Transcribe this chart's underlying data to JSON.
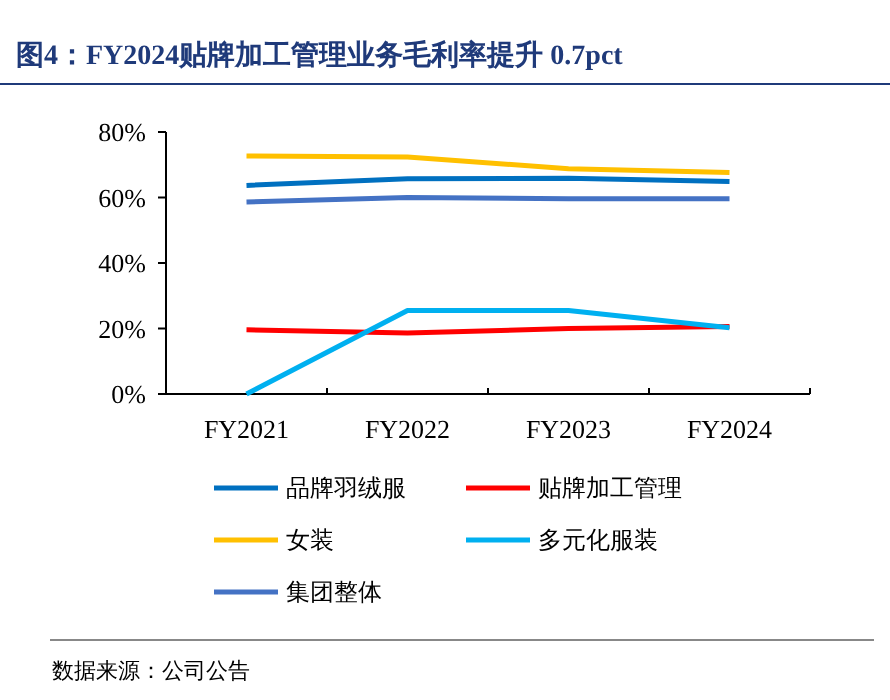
{
  "chart_data": {
    "type": "line",
    "title": "图4：FY2024贴牌加工管理业务毛利率提升 0.7pct",
    "categories": [
      "FY2021",
      "FY2022",
      "FY2023",
      "FY2024"
    ],
    "series": [
      {
        "name": "品牌羽绒服",
        "color": "#0070c0",
        "values": [
          63.7,
          65.7,
          65.9,
          64.9
        ]
      },
      {
        "name": "贴牌加工管理",
        "color": "#ff0000",
        "values": [
          19.6,
          18.6,
          20,
          20.6
        ]
      },
      {
        "name": "女装",
        "color": "#ffc000",
        "values": [
          72.7,
          72.4,
          68.8,
          67.6
        ]
      },
      {
        "name": "多元化服装",
        "color": "#00b0f0",
        "values": [
          0,
          25.5,
          25.5,
          20.2
        ]
      },
      {
        "name": "集团整体",
        "color": "#4472c4",
        "values": [
          58.6,
          60,
          59.6,
          59.6
        ]
      }
    ],
    "ylim": [
      0,
      80
    ],
    "yticks": [
      {
        "value": 0,
        "label": "0%"
      },
      {
        "value": 20,
        "label": "20%"
      },
      {
        "value": 40,
        "label": "40%"
      },
      {
        "value": 60,
        "label": "60%"
      },
      {
        "value": 80,
        "label": "80%"
      }
    ],
    "grid": false,
    "legend": "bottom",
    "marker": "none",
    "line_style": "solid",
    "annotations": [
      "数据来源：公司公告"
    ]
  }
}
